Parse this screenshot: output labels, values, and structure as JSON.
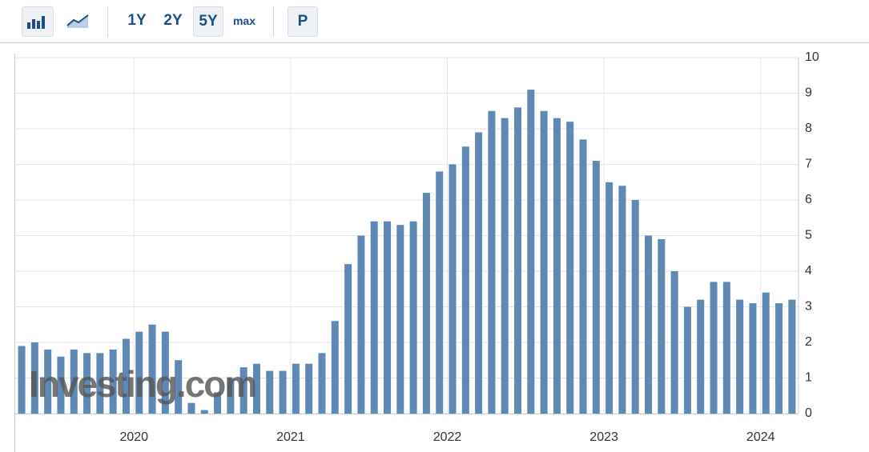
{
  "toolbar": {
    "ranges": [
      "1Y",
      "2Y",
      "5Y",
      "max"
    ],
    "p": "P"
  },
  "chart_data": {
    "type": "bar",
    "watermark": "Investing.com",
    "color": "#6088b4",
    "categories": [
      null,
      null,
      null,
      null,
      null,
      null,
      null,
      null,
      null,
      "2020",
      null,
      null,
      null,
      null,
      null,
      null,
      null,
      null,
      null,
      null,
      null,
      "2021",
      null,
      null,
      null,
      null,
      null,
      null,
      null,
      null,
      null,
      null,
      null,
      "2022",
      null,
      null,
      null,
      null,
      null,
      null,
      null,
      null,
      null,
      null,
      null,
      "2023",
      null,
      null,
      null,
      null,
      null,
      null,
      null,
      null,
      null,
      null,
      null,
      "2024",
      null,
      null
    ],
    "values": [
      1.9,
      2.0,
      1.8,
      1.6,
      1.8,
      1.7,
      1.7,
      1.8,
      2.1,
      2.3,
      2.5,
      2.3,
      1.5,
      0.3,
      0.1,
      0.6,
      1.0,
      1.3,
      1.4,
      1.2,
      1.2,
      1.4,
      1.4,
      1.7,
      2.6,
      4.2,
      5.0,
      5.4,
      5.4,
      5.3,
      5.4,
      6.2,
      6.8,
      7.0,
      7.5,
      7.9,
      8.5,
      8.3,
      8.6,
      9.1,
      8.5,
      8.3,
      8.2,
      7.7,
      7.1,
      6.5,
      6.4,
      6.0,
      5.0,
      4.9,
      4.0,
      3.0,
      3.2,
      3.7,
      3.7,
      3.2,
      3.1,
      3.4,
      3.1,
      3.2
    ],
    "ylim": [
      0,
      10
    ],
    "yticks": [
      0,
      1,
      2,
      3,
      4,
      5,
      6,
      7,
      8,
      9,
      10
    ],
    "grid": true
  }
}
